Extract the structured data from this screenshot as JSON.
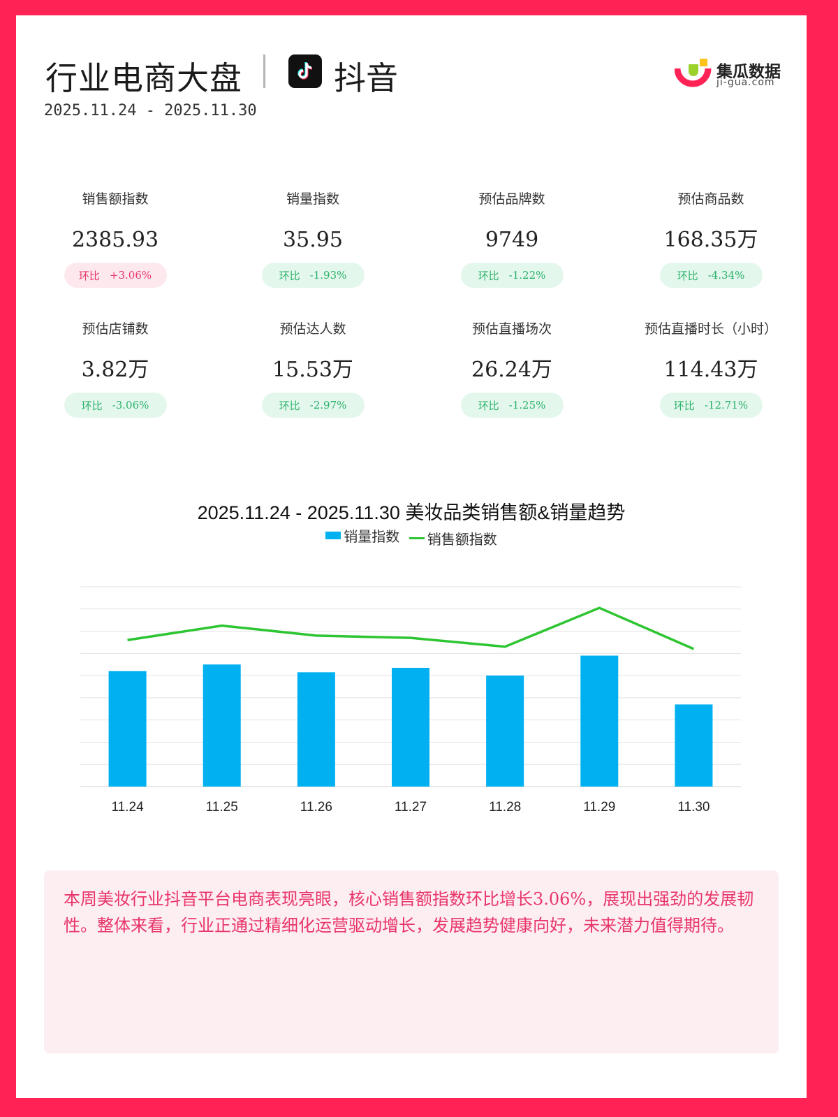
{
  "header": {
    "title": "行业电商大盘",
    "platform": "抖音",
    "date_range": "2025.11.24 - 2025.11.30",
    "brand_name": "集瓜数据",
    "brand_url": "ji-gua.com"
  },
  "metrics": [
    {
      "label": "销售额指数",
      "value": "2385.93",
      "change_label": "环比",
      "change": "+3.06%",
      "trend": "up"
    },
    {
      "label": "销量指数",
      "value": "35.95",
      "change_label": "环比",
      "change": "-1.93%",
      "trend": "down"
    },
    {
      "label": "预估品牌数",
      "value": "9749",
      "change_label": "环比",
      "change": "-1.22%",
      "trend": "down"
    },
    {
      "label": "预估商品数",
      "value": "168.35万",
      "change_label": "环比",
      "change": "-4.34%",
      "trend": "down"
    },
    {
      "label": "预估店铺数",
      "value": "3.82万",
      "change_label": "环比",
      "change": "-3.06%",
      "trend": "down"
    },
    {
      "label": "预估达人数",
      "value": "15.53万",
      "change_label": "环比",
      "change": "-2.97%",
      "trend": "down"
    },
    {
      "label": "预估直播场次",
      "value": "26.24万",
      "change_label": "环比",
      "change": "-1.25%",
      "trend": "down"
    },
    {
      "label": "预估直播时长（小时）",
      "value": "114.43万",
      "change_label": "环比",
      "change": "-12.71%",
      "trend": "down"
    }
  ],
  "chart_data": {
    "type": "bar",
    "title": "2025.11.24 - 2025.11.30 美妆品类销售额&销量趋势",
    "categories": [
      "11.24",
      "11.25",
      "11.26",
      "11.27",
      "11.28",
      "11.29",
      "11.30"
    ],
    "series": [
      {
        "name": "销量指数",
        "type": "bar",
        "color": "#00b0f0",
        "values": [
          5.2,
          5.5,
          5.15,
          5.35,
          5.0,
          5.9,
          3.7
        ]
      },
      {
        "name": "销售额指数",
        "type": "line",
        "color": "#2ec532",
        "values": [
          6.6,
          7.25,
          6.8,
          6.7,
          6.3,
          8.05,
          6.2
        ]
      }
    ],
    "ylim": [
      0,
      9
    ],
    "y_axis_labels_shown": false,
    "grid": true,
    "legend_position": "top"
  },
  "summary": {
    "text": "本周美妆行业抖音平台电商表现亮眼，核心销售额指数环比增长3.06%，展现出强劲的发展韧性。整体来看，行业正通过精细化运营驱动增长，发展趋势健康向好，未来潜力值得期待。"
  }
}
